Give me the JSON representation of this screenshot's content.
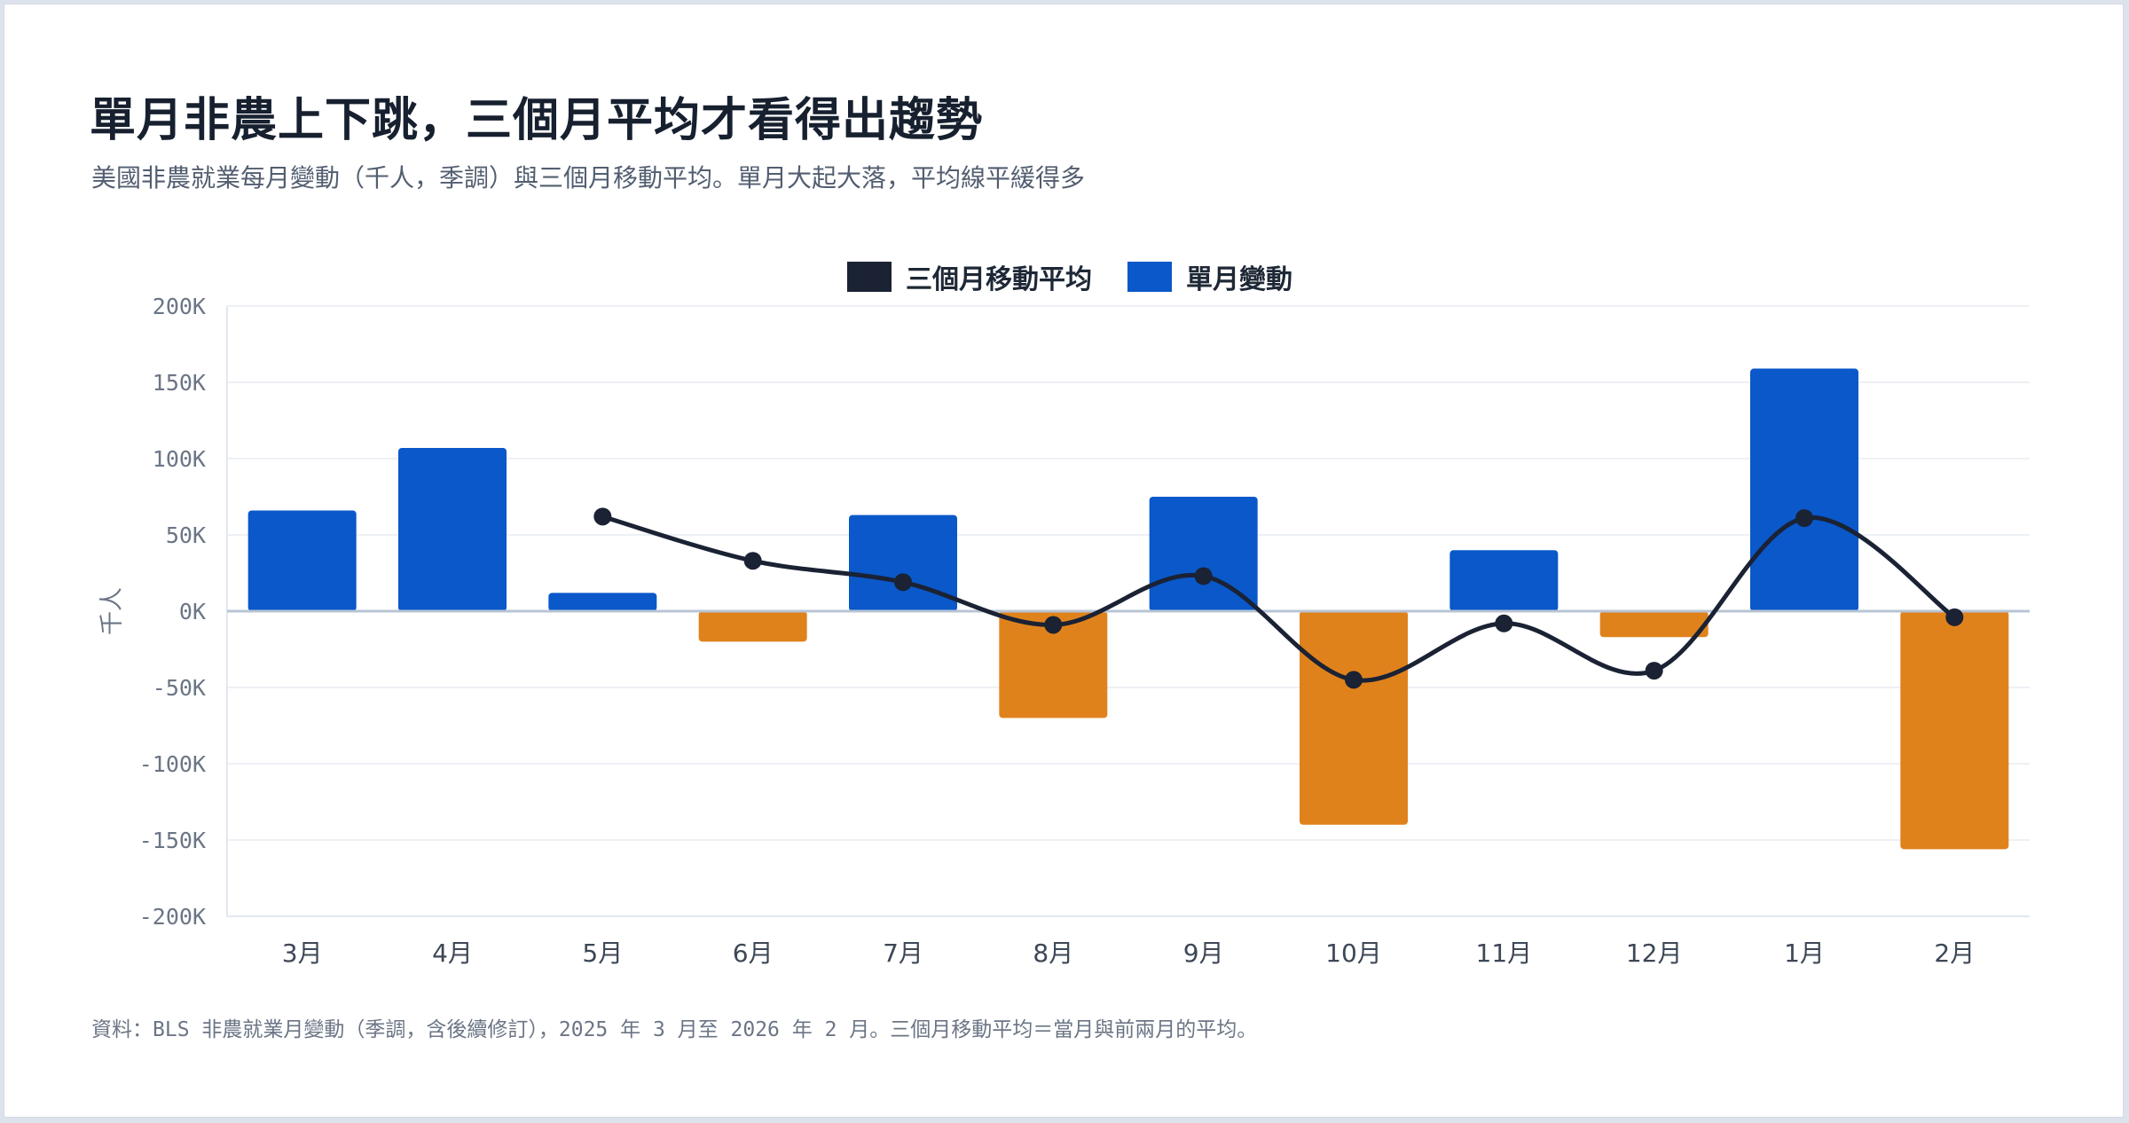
{
  "title": "單月非農上下跳，三個月平均才看得出趨勢",
  "subtitle": "美國非農就業每月變動（千人，季調）與三個月移動平均。單月大起大落，平均線平緩得多",
  "source": "資料：BLS 非農就業月變動（季調，含後續修訂），2025 年 3 月至 2026 年 2 月。三個月移動平均＝當月與前兩月的平均。",
  "legend": {
    "avg_label": "三個月移動平均",
    "bar_label": "單月變動"
  },
  "colors": {
    "positive": "#0a58c9",
    "negative": "#e0821c",
    "average": "#1a2234",
    "zero_line": "#b8c4d4",
    "grid": "#edf0f4",
    "tick_text": "#6b7585",
    "category_text": "#3d4756"
  },
  "chart_data": {
    "type": "bar",
    "categories": [
      "3月",
      "4月",
      "5月",
      "6月",
      "7月",
      "8月",
      "9月",
      "10月",
      "11月",
      "12月",
      "1月",
      "2月"
    ],
    "series": [
      {
        "name": "單月變動",
        "type": "bar",
        "values": [
          66,
          107,
          12,
          -20,
          63,
          -70,
          75,
          -140,
          40,
          -17,
          159,
          -156
        ]
      },
      {
        "name": "三個月移動平均",
        "type": "line",
        "values": [
          null,
          null,
          62,
          33,
          19,
          -9,
          23,
          -45,
          -8,
          -39,
          61,
          -4
        ]
      }
    ],
    "ylabel": "千人",
    "ylim": [
      -200,
      200
    ],
    "yticks": [
      200,
      150,
      100,
      50,
      0,
      -50,
      -100,
      -150,
      -200
    ],
    "ytick_labels": [
      "200K",
      "150K",
      "100K",
      "50K",
      "0K",
      "-50K",
      "-100K",
      "-150K",
      "-200K"
    ],
    "grid": true,
    "legend_position": "top-center"
  }
}
